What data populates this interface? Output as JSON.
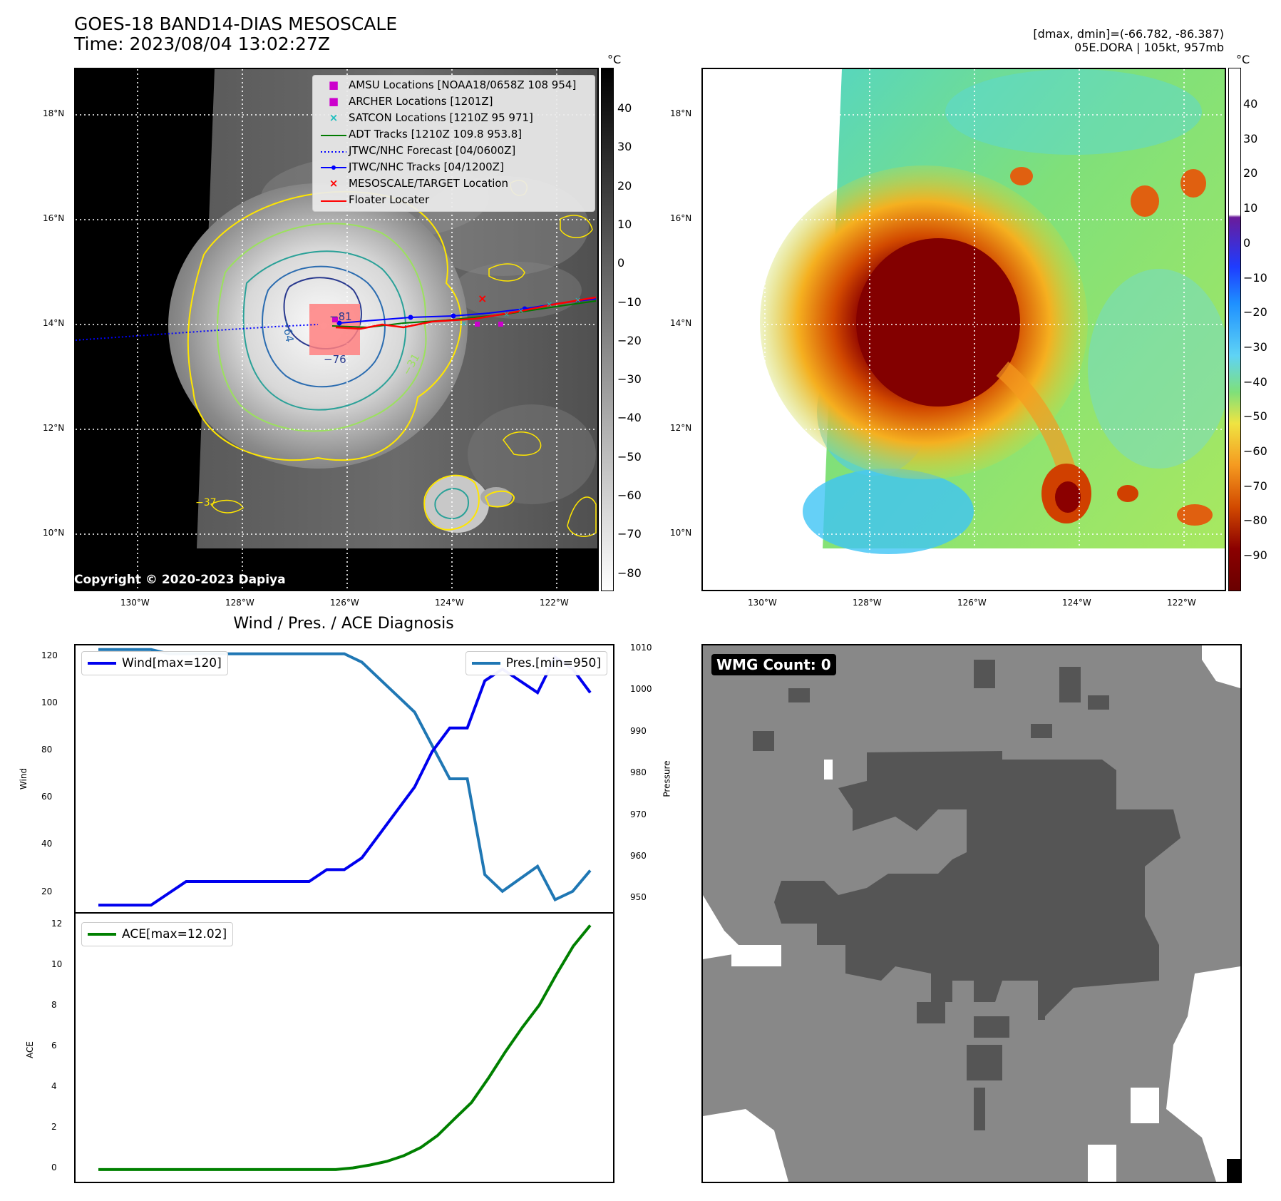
{
  "header": {
    "title_line1": "GOES-18 BAND14-DIAS MESOSCALE",
    "title_line2": "Time: 2023/08/04 13:02:27Z",
    "right_line1": "[dmax, dmin]=(-66.782, -86.387)",
    "right_line2": "05E.DORA | 105kt, 957mb"
  },
  "map_axes": {
    "lat_ticks": [
      "18°N",
      "16°N",
      "14°N",
      "12°N",
      "10°N"
    ],
    "lon_ticks": [
      "130°W",
      "128°W",
      "126°W",
      "124°W",
      "122°W"
    ]
  },
  "ir_panel": {
    "copyright": "Copyright © 2020-2023 Dapiya",
    "colorbar_unit": "°C",
    "colorbar_ticks": [
      "40",
      "30",
      "20",
      "10",
      "0",
      "−10",
      "−20",
      "−30",
      "−40",
      "−50",
      "−60",
      "−70",
      "−80"
    ],
    "contour_labels": [
      "−81",
      "−64",
      "−76",
      "−31",
      "−37"
    ],
    "legend": [
      {
        "symbol": "■",
        "color": "#cc00cc",
        "label": "AMSU Locations [NOAA18/0658Z 108 954]"
      },
      {
        "symbol": "■",
        "color": "#cc00cc",
        "label": "ARCHER Locations [1201Z]"
      },
      {
        "symbol": "×",
        "color": "#1fbfbf",
        "label": "SATCON Locations [1210Z 95 971]"
      },
      {
        "symbol": "line",
        "color": "#007a00",
        "label": "ADT Tracks [1210Z 109.8 953.8]"
      },
      {
        "symbol": "dotted",
        "color": "#0000ff",
        "label": "JTWC/NHC Forecast [04/0600Z]"
      },
      {
        "symbol": "line-dot",
        "color": "#0000ff",
        "label": "JTWC/NHC Tracks [04/1200Z]"
      },
      {
        "symbol": "×",
        "color": "#ff0000",
        "label": "MESOSCALE/TARGET Location"
      },
      {
        "symbol": "line",
        "color": "#ff0000",
        "label": "Floater Locater"
      }
    ]
  },
  "enh_panel": {
    "colorbar_unit": "°C",
    "colorbar_ticks": [
      "40",
      "30",
      "20",
      "10",
      "0",
      "−10",
      "−20",
      "−30",
      "−40",
      "−50",
      "−60",
      "−70",
      "−80",
      "−90"
    ]
  },
  "diagnosis": {
    "title": "Wind / Pres. / ACE Diagnosis",
    "wind_axis_label": "Wind",
    "pressure_axis_label": "Pressure",
    "ace_axis_label": "ACE",
    "wind_ticks": [
      "120",
      "100",
      "80",
      "60",
      "40",
      "20"
    ],
    "pressure_ticks": [
      "1010",
      "1000",
      "990",
      "980",
      "970",
      "960",
      "950"
    ],
    "ace_ticks": [
      "12",
      "10",
      "8",
      "6",
      "4",
      "2",
      "0"
    ],
    "wind_legend": "Wind[max=120]",
    "pressure_legend": "Pres.[min=950]",
    "ace_legend": "ACE[max=12.02]",
    "wind_color": "#0000ee",
    "pressure_color": "#1f77b4",
    "ace_color": "#008000"
  },
  "wmg": {
    "label": "WMG Count: 0"
  },
  "chart_data": [
    {
      "type": "line",
      "title": "Wind / Pres. / ACE Diagnosis",
      "ylabel": "Wind",
      "ylim": [
        12,
        125
      ],
      "series": [
        {
          "name": "Wind[max=120]",
          "values": [
            15,
            15,
            15,
            15,
            20,
            25,
            25,
            25,
            25,
            25,
            25,
            25,
            25,
            30,
            30,
            35,
            45,
            55,
            65,
            80,
            90,
            90,
            110,
            115,
            110,
            105,
            120,
            115,
            105
          ]
        }
      ]
    },
    {
      "type": "line",
      "ylabel": "Pressure",
      "ylim": [
        947,
        1011
      ],
      "series": [
        {
          "name": "Pres.[min=950]",
          "values": [
            1010,
            1010,
            1010,
            1010,
            1009,
            1009,
            1009,
            1009,
            1009,
            1009,
            1009,
            1009,
            1009,
            1009,
            1009,
            1007,
            1003,
            999,
            995,
            987,
            979,
            979,
            956,
            952,
            955,
            958,
            950,
            952,
            957
          ]
        }
      ]
    },
    {
      "type": "line",
      "ylabel": "ACE",
      "ylim": [
        -0.6,
        12.6
      ],
      "series": [
        {
          "name": "ACE[max=12.02]",
          "values": [
            0,
            0,
            0,
            0,
            0,
            0,
            0,
            0,
            0,
            0,
            0,
            0,
            0,
            0,
            0,
            0.08,
            0.22,
            0.4,
            0.68,
            1.08,
            1.68,
            2.5,
            3.3,
            4.5,
            5.8,
            7.0,
            8.1,
            9.6,
            11.0,
            12.02
          ]
        }
      ]
    }
  ]
}
